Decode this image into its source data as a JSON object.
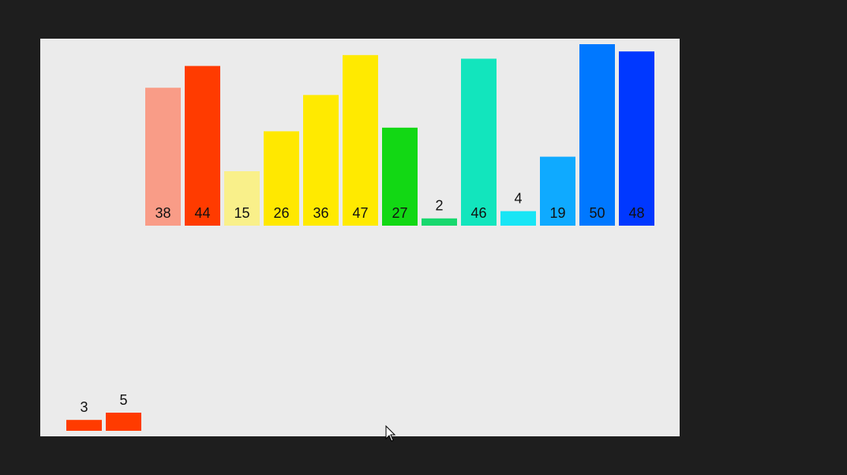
{
  "main_bars": [
    {
      "value": 38,
      "color": "#f99c87"
    },
    {
      "value": 44,
      "color": "#ff3b00"
    },
    {
      "value": 15,
      "color": "#f9f08a"
    },
    {
      "value": 26,
      "color": "#ffe800"
    },
    {
      "value": 36,
      "color": "#ffea00"
    },
    {
      "value": 47,
      "color": "#ffea00"
    },
    {
      "value": 27,
      "color": "#12d814"
    },
    {
      "value": 2,
      "color": "#18d86e"
    },
    {
      "value": 46,
      "color": "#12e5bd"
    },
    {
      "value": 4,
      "color": "#18e5f5"
    },
    {
      "value": 19,
      "color": "#0faaff"
    },
    {
      "value": 50,
      "color": "#0078ff"
    },
    {
      "value": 48,
      "color": "#0038ff"
    }
  ],
  "aux_bars": [
    {
      "value": 3,
      "color": "#ff3b00"
    },
    {
      "value": 5,
      "color": "#ff3b00"
    }
  ]
}
